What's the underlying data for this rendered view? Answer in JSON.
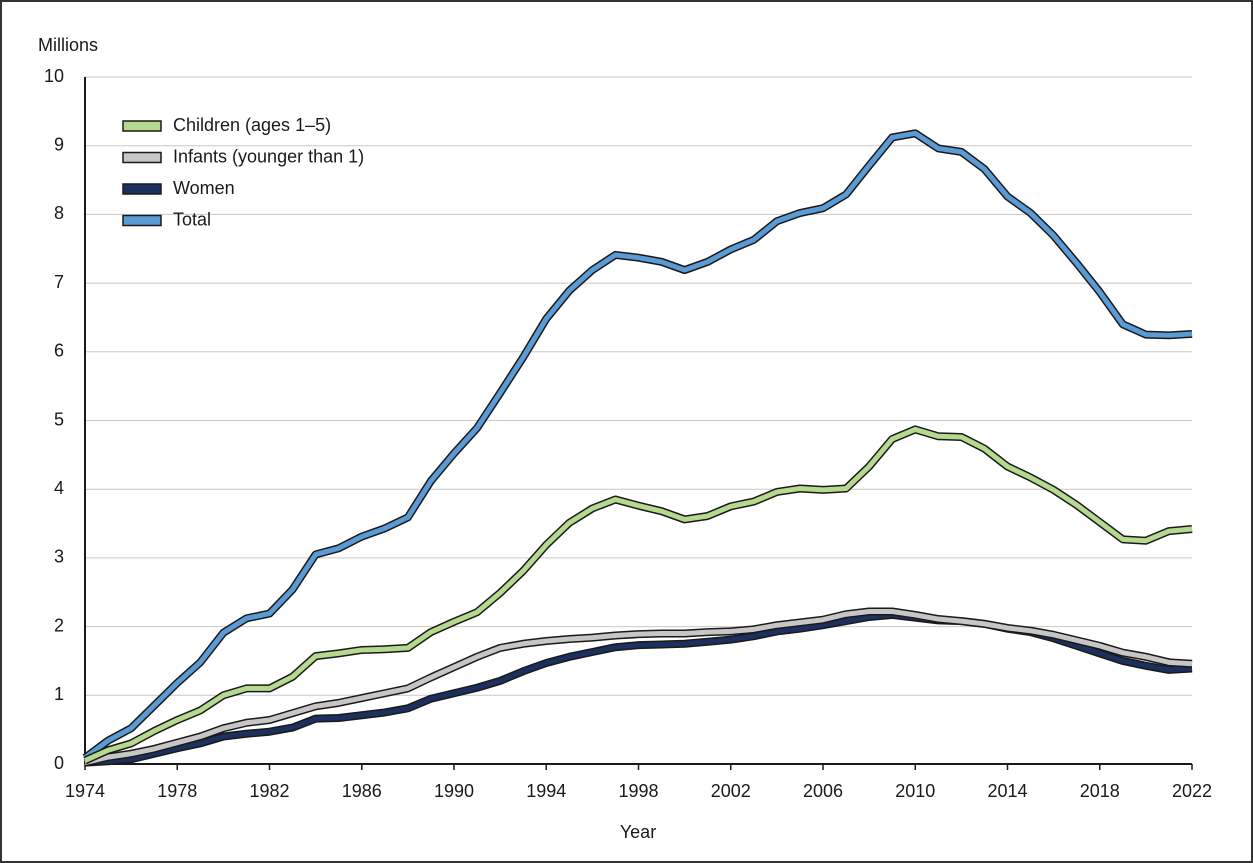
{
  "chart_data": {
    "type": "line",
    "y_label": "Millions",
    "x_label": "Year",
    "x": [
      1974,
      1975,
      1976,
      1977,
      1978,
      1979,
      1980,
      1981,
      1982,
      1983,
      1984,
      1985,
      1986,
      1987,
      1988,
      1989,
      1990,
      1991,
      1992,
      1993,
      1994,
      1995,
      1996,
      1997,
      1998,
      1999,
      2000,
      2001,
      2002,
      2003,
      2004,
      2005,
      2006,
      2007,
      2008,
      2009,
      2010,
      2011,
      2012,
      2013,
      2014,
      2015,
      2016,
      2017,
      2018,
      2019,
      2020,
      2021,
      2022
    ],
    "series": [
      {
        "name": "Children (ages 1–5)",
        "color": "#b5d98e",
        "values": [
          0.05,
          0.2,
          0.3,
          0.48,
          0.64,
          0.78,
          1.0,
          1.1,
          1.1,
          1.27,
          1.57,
          1.61,
          1.66,
          1.67,
          1.69,
          1.92,
          2.07,
          2.21,
          2.49,
          2.81,
          3.19,
          3.51,
          3.72,
          3.85,
          3.76,
          3.68,
          3.56,
          3.61,
          3.75,
          3.82,
          3.96,
          4.01,
          3.99,
          4.01,
          4.33,
          4.73,
          4.87,
          4.77,
          4.76,
          4.59,
          4.33,
          4.17,
          3.99,
          3.77,
          3.52,
          3.27,
          3.25,
          3.39,
          3.42
        ]
      },
      {
        "name": "Infants (younger than 1)",
        "color": "#c6c6c6",
        "values": [
          0.02,
          0.1,
          0.15,
          0.22,
          0.31,
          0.4,
          0.52,
          0.6,
          0.64,
          0.74,
          0.84,
          0.89,
          0.96,
          1.03,
          1.1,
          1.26,
          1.41,
          1.56,
          1.69,
          1.75,
          1.79,
          1.82,
          1.84,
          1.87,
          1.89,
          1.9,
          1.9,
          1.92,
          1.93,
          1.96,
          2.02,
          2.06,
          2.1,
          2.18,
          2.22,
          2.22,
          2.17,
          2.11,
          2.08,
          2.04,
          1.98,
          1.94,
          1.88,
          1.8,
          1.72,
          1.62,
          1.56,
          1.48,
          1.46
        ]
      },
      {
        "name": "Women",
        "color": "#1d2f5e",
        "values": [
          0.02,
          0.04,
          0.07,
          0.15,
          0.23,
          0.3,
          0.4,
          0.44,
          0.47,
          0.53,
          0.66,
          0.67,
          0.71,
          0.75,
          0.81,
          0.95,
          1.03,
          1.11,
          1.21,
          1.35,
          1.47,
          1.56,
          1.63,
          1.7,
          1.73,
          1.74,
          1.75,
          1.78,
          1.81,
          1.86,
          1.93,
          1.97,
          2.02,
          2.08,
          2.14,
          2.17,
          2.13,
          2.09,
          2.08,
          2.04,
          1.97,
          1.92,
          1.83,
          1.72,
          1.61,
          1.5,
          1.43,
          1.37,
          1.39
        ]
      },
      {
        "name": "Total",
        "color": "#5b9bd5",
        "values": [
          0.09,
          0.34,
          0.52,
          0.85,
          1.18,
          1.48,
          1.91,
          2.12,
          2.19,
          2.54,
          3.05,
          3.14,
          3.31,
          3.43,
          3.59,
          4.12,
          4.52,
          4.89,
          5.4,
          5.92,
          6.48,
          6.89,
          7.19,
          7.41,
          7.37,
          7.31,
          7.19,
          7.31,
          7.49,
          7.63,
          7.9,
          8.02,
          8.09,
          8.29,
          8.71,
          9.12,
          9.18,
          8.96,
          8.91,
          8.66,
          8.26,
          8.02,
          7.69,
          7.29,
          6.87,
          6.4,
          6.25,
          6.24,
          6.26
        ]
      }
    ],
    "xlim": [
      1974,
      2022
    ],
    "xticks": [
      1974,
      1978,
      1982,
      1986,
      1990,
      1994,
      1998,
      2002,
      2006,
      2010,
      2014,
      2018,
      2022
    ],
    "ylim": [
      0,
      10
    ],
    "yticks": [
      0,
      1,
      2,
      3,
      4,
      5,
      6,
      7,
      8,
      9,
      10
    ],
    "grid": true,
    "legend": "upper left",
    "outline_color": "#1a1a1a"
  }
}
